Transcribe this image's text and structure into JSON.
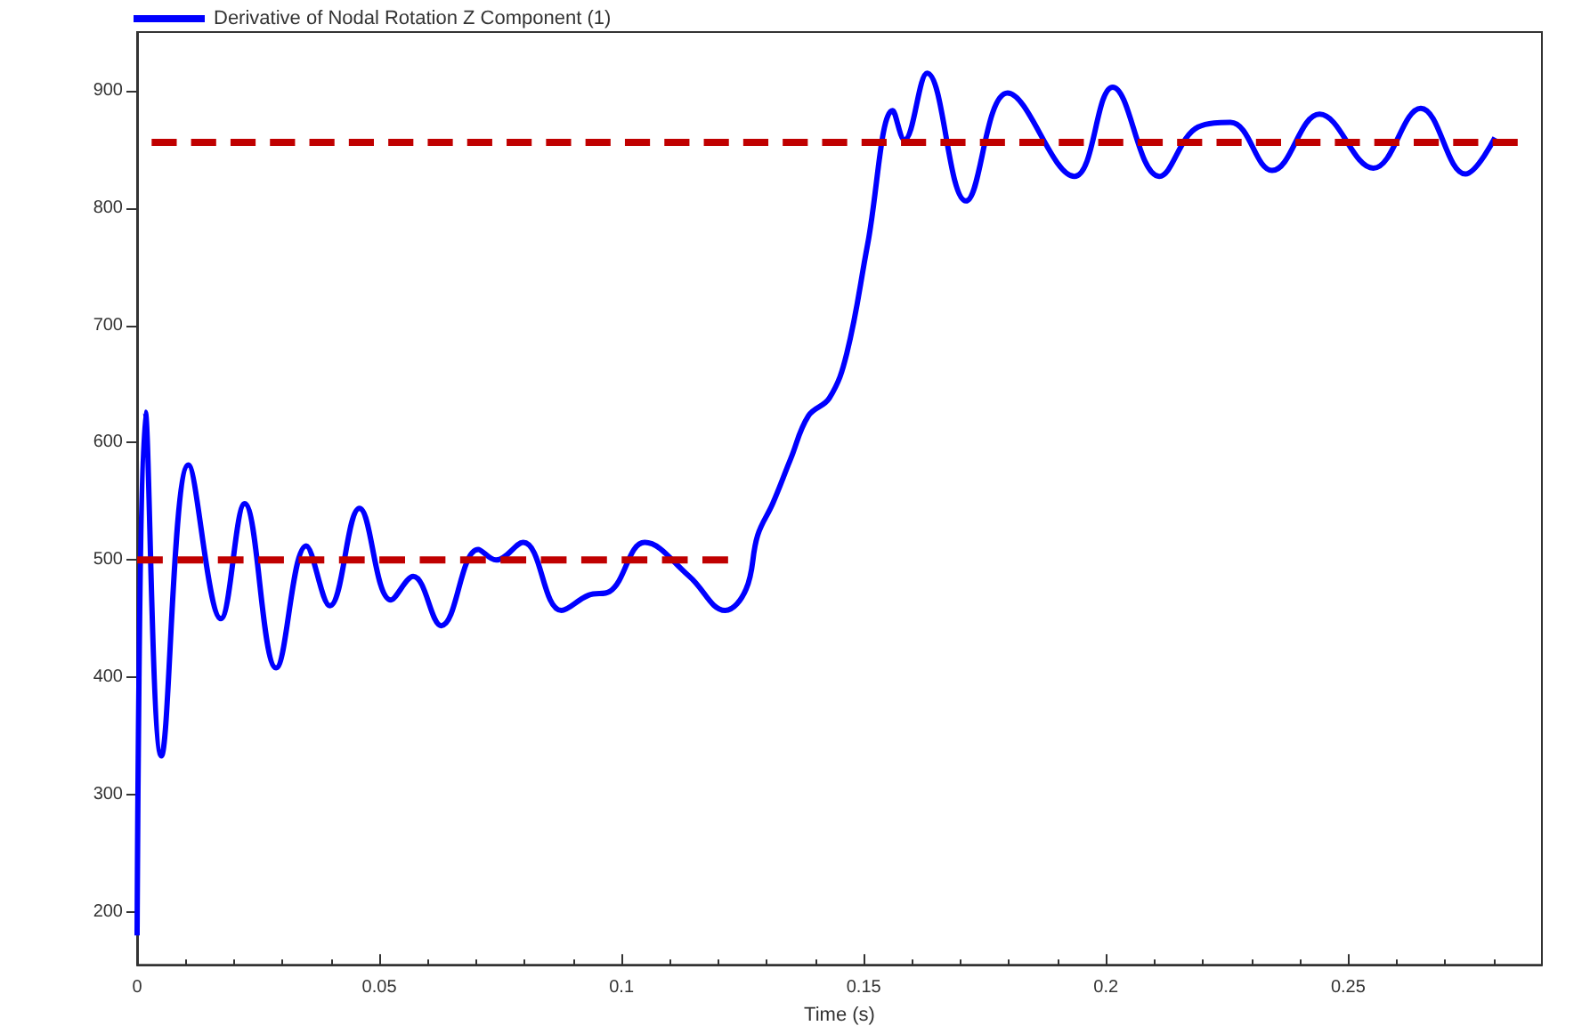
{
  "chart_data": {
    "type": "line",
    "xlabel": "Time (s)",
    "xlim": [
      0,
      0.29
    ],
    "xticks": [
      0,
      0.05,
      0.1,
      0.15,
      0.2,
      0.25
    ],
    "ylim": [
      155,
      950
    ],
    "yticks": [
      200,
      300,
      400,
      500,
      600,
      700,
      800,
      900
    ],
    "grid": false,
    "legend": "top left",
    "marker": "none",
    "series": [
      {
        "name": "Derivative of Nodal Rotation Z Component (1)",
        "color": "#0000ff",
        "line_style": "solid",
        "x": [
          0,
          0.0017,
          0.005,
          0.0106,
          0.0173,
          0.0222,
          0.0287,
          0.0349,
          0.0398,
          0.0459,
          0.0524,
          0.057,
          0.0628,
          0.0704,
          0.0741,
          0.0797,
          0.0876,
          0.0932,
          0.0975,
          0.1048,
          0.114,
          0.1214,
          0.1257,
          0.1281,
          0.1312,
          0.1349,
          0.1386,
          0.1429,
          0.1465,
          0.1508,
          0.156,
          0.1584,
          0.1631,
          0.1711,
          0.1797,
          0.1935,
          0.2014,
          0.211,
          0.219,
          0.2257,
          0.2343,
          0.2441,
          0.2552,
          0.265,
          0.2742,
          0.2803
        ],
        "values": [
          180,
          626,
          333,
          581,
          450,
          548,
          408,
          512,
          461,
          544,
          466,
          486,
          444,
          509,
          500,
          515,
          457,
          470,
          473,
          515,
          486,
          457,
          475,
          521,
          548,
          586,
          623,
          638,
          676,
          769,
          883,
          858,
          915,
          806,
          898,
          827,
          903,
          827,
          869,
          873,
          832,
          880,
          834,
          885,
          829,
          860
        ]
      },
      {
        "color": "#c00000",
        "line_style": "dashed",
        "x": [
          0,
          0.122
        ],
        "values": [
          500,
          500
        ]
      },
      {
        "color": "#c00000",
        "line_style": "dashed",
        "x": [
          0.003,
          0.285
        ],
        "values": [
          856,
          856
        ]
      }
    ]
  }
}
